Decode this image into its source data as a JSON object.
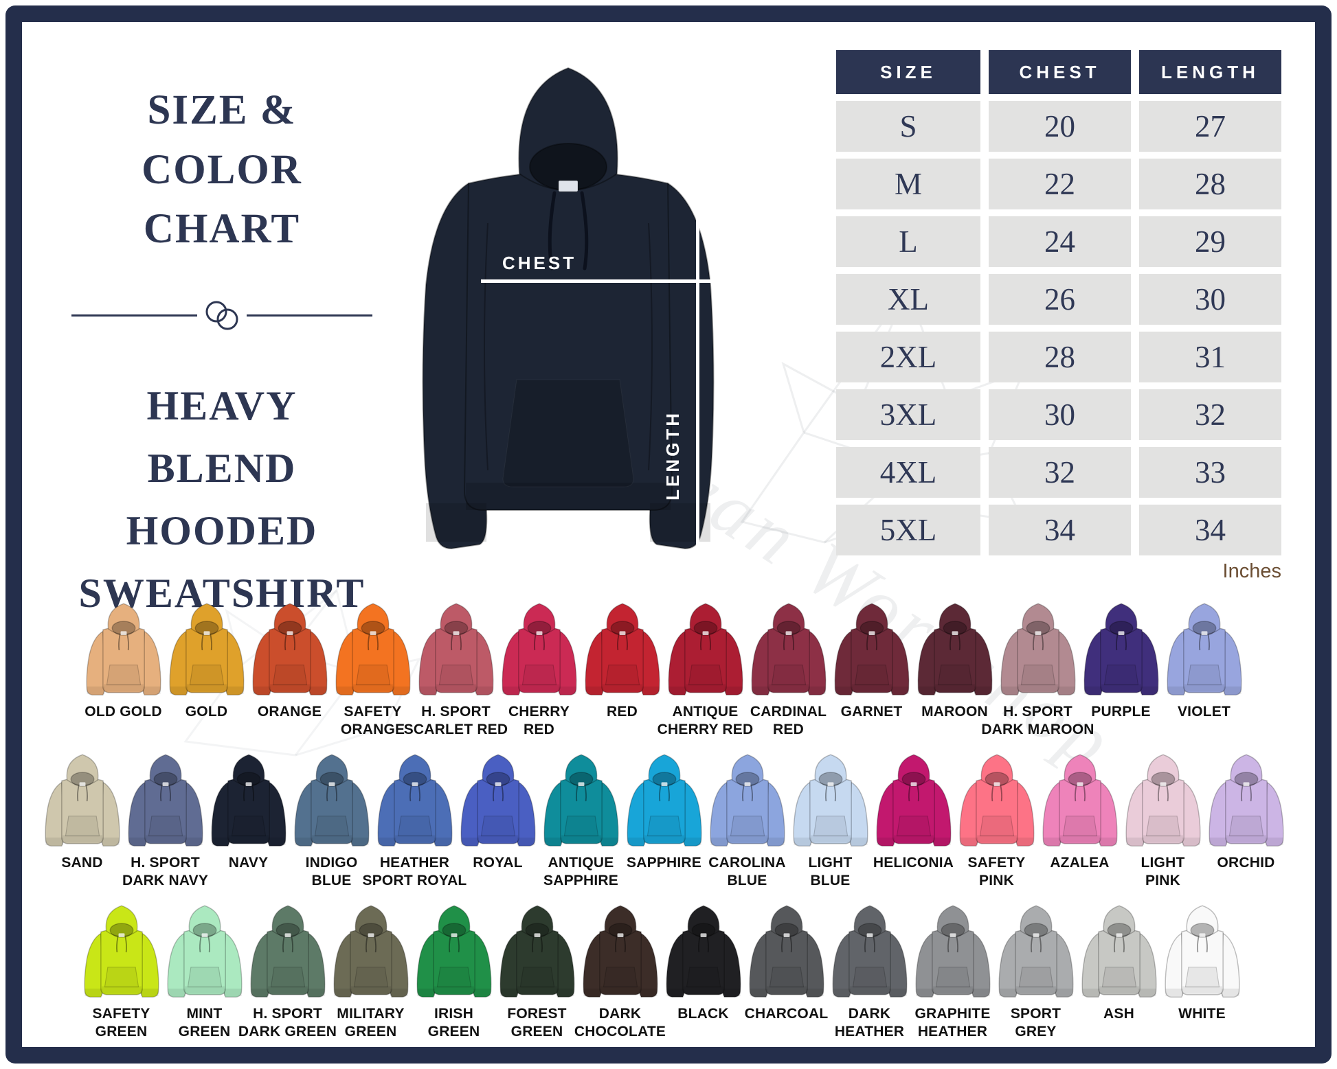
{
  "header": {
    "title": "SIZE & COLOR CHART",
    "subtitle": "HEAVY BLEND HOODED SWEATSHIRT"
  },
  "diagram": {
    "chest_label": "CHEST",
    "length_label": "LENGTH",
    "hoodie_color": "#1d2534"
  },
  "size_table": {
    "headers": [
      "SIZE",
      "CHEST",
      "LENGTH"
    ],
    "rows": [
      [
        "S",
        "20",
        "27"
      ],
      [
        "M",
        "22",
        "28"
      ],
      [
        "L",
        "24",
        "29"
      ],
      [
        "XL",
        "26",
        "30"
      ],
      [
        "2XL",
        "28",
        "31"
      ],
      [
        "3XL",
        "30",
        "32"
      ],
      [
        "4XL",
        "32",
        "33"
      ],
      [
        "5XL",
        "34",
        "34"
      ]
    ],
    "units_label": "Inches",
    "header_bg": "#2c3552",
    "cell_bg": "#e2e2e1",
    "text_color": "#2f3855"
  },
  "watermark": {
    "text": "Little Swan Workshop"
  },
  "color_rows": [
    [
      {
        "name": "OLD GOLD",
        "lines": [
          "OLD GOLD"
        ],
        "hex": "#e6b07e"
      },
      {
        "name": "GOLD",
        "lines": [
          "GOLD"
        ],
        "hex": "#dfa12b"
      },
      {
        "name": "ORANGE",
        "lines": [
          "ORANGE"
        ],
        "hex": "#cb4e2c"
      },
      {
        "name": "SAFETY ORANGE",
        "lines": [
          "SAFETY",
          "ORANGE"
        ],
        "hex": "#f37321"
      },
      {
        "name": "H. SPORT SCARLET RED",
        "lines": [
          "H. SPORT",
          "SCARLET RED"
        ],
        "hex": "#bd5a67"
      },
      {
        "name": "CHERRY RED",
        "lines": [
          "CHERRY",
          "RED"
        ],
        "hex": "#cb2a54"
      },
      {
        "name": "RED",
        "lines": [
          "RED"
        ],
        "hex": "#c32431"
      },
      {
        "name": "ANTIQUE CHERRY RED",
        "lines": [
          "ANTIQUE",
          "CHERRY RED"
        ],
        "hex": "#ac1e33"
      },
      {
        "name": "CARDINAL RED",
        "lines": [
          "CARDINAL",
          "RED"
        ],
        "hex": "#8d3046"
      },
      {
        "name": "GARNET",
        "lines": [
          "GARNET"
        ],
        "hex": "#6f2a3a"
      },
      {
        "name": "MAROON",
        "lines": [
          "MAROON"
        ],
        "hex": "#5c2936"
      },
      {
        "name": "H. SPORT DARK MAROON",
        "lines": [
          "H. SPORT",
          "DARK MAROON"
        ],
        "hex": "#b28a91"
      },
      {
        "name": "PURPLE",
        "lines": [
          "PURPLE"
        ],
        "hex": "#402f7c"
      },
      {
        "name": "VIOLET",
        "lines": [
          "VIOLET"
        ],
        "hex": "#98a5de"
      }
    ],
    [
      {
        "name": "SAND",
        "lines": [
          "SAND"
        ],
        "hex": "#cfc7ad"
      },
      {
        "name": "H. SPORT DARK NAVY",
        "lines": [
          "H. SPORT",
          "DARK NAVY"
        ],
        "hex": "#606c93"
      },
      {
        "name": "NAVY",
        "lines": [
          "NAVY"
        ],
        "hex": "#1c2333"
      },
      {
        "name": "INDIGO BLUE",
        "lines": [
          "INDIGO",
          "BLUE"
        ],
        "hex": "#53718f"
      },
      {
        "name": "HEATHER SPORT ROYAL",
        "lines": [
          "HEATHER",
          "SPORT ROYAL"
        ],
        "hex": "#4c6eb6"
      },
      {
        "name": "ROYAL",
        "lines": [
          "ROYAL"
        ],
        "hex": "#4a5fc2"
      },
      {
        "name": "ANTIQUE SAPPHIRE",
        "lines": [
          "ANTIQUE",
          "SAPPHIRE"
        ],
        "hex": "#0f8d9b"
      },
      {
        "name": "SAPPHIRE",
        "lines": [
          "SAPPHIRE"
        ],
        "hex": "#18a5d8"
      },
      {
        "name": "CAROLINA BLUE",
        "lines": [
          "CAROLINA",
          "BLUE"
        ],
        "hex": "#8ca5de"
      },
      {
        "name": "LIGHT BLUE",
        "lines": [
          "LIGHT",
          "BLUE"
        ],
        "hex": "#c6d9f0"
      },
      {
        "name": "HELICONIA",
        "lines": [
          "HELICONIA"
        ],
        "hex": "#c2186e"
      },
      {
        "name": "SAFETY PINK",
        "lines": [
          "SAFETY",
          "PINK"
        ],
        "hex": "#fd7386"
      },
      {
        "name": "AZALEA",
        "lines": [
          "AZALEA"
        ],
        "hex": "#ee83ba"
      },
      {
        "name": "LIGHT PINK",
        "lines": [
          "LIGHT",
          "PINK"
        ],
        "hex": "#eaccd9"
      },
      {
        "name": "ORCHID",
        "lines": [
          "ORCHID"
        ],
        "hex": "#ccb5e5"
      }
    ],
    [
      {
        "name": "SAFETY GREEN",
        "lines": [
          "SAFETY",
          "GREEN"
        ],
        "hex": "#c9e617"
      },
      {
        "name": "MINT GREEN",
        "lines": [
          "MINT",
          "GREEN"
        ],
        "hex": "#abe9c0"
      },
      {
        "name": "H. SPORT DARK GREEN",
        "lines": [
          "H. SPORT",
          "DARK GREEN"
        ],
        "hex": "#5d7a67"
      },
      {
        "name": "MILITARY GREEN",
        "lines": [
          "MILITARY",
          "GREEN"
        ],
        "hex": "#6c6b55"
      },
      {
        "name": "IRISH GREEN",
        "lines": [
          "IRISH",
          "GREEN"
        ],
        "hex": "#209048"
      },
      {
        "name": "FOREST GREEN",
        "lines": [
          "FOREST",
          "GREEN"
        ],
        "hex": "#2d3b2e"
      },
      {
        "name": "DARK CHOCOLATE",
        "lines": [
          "DARK",
          "CHOCOLATE"
        ],
        "hex": "#3c2d28"
      },
      {
        "name": "BLACK",
        "lines": [
          "BLACK"
        ],
        "hex": "#202023"
      },
      {
        "name": "CHARCOAL",
        "lines": [
          "CHARCOAL"
        ],
        "hex": "#56585b"
      },
      {
        "name": "DARK HEATHER",
        "lines": [
          "DARK",
          "HEATHER"
        ],
        "hex": "#616469"
      },
      {
        "name": "GRAPHITE HEATHER",
        "lines": [
          "GRAPHITE",
          "HEATHER"
        ],
        "hex": "#8f9194"
      },
      {
        "name": "SPORT GREY",
        "lines": [
          "SPORT",
          "GREY"
        ],
        "hex": "#aaacae"
      },
      {
        "name": "ASH",
        "lines": [
          "ASH"
        ],
        "hex": "#c7c8c4"
      },
      {
        "name": "WHITE",
        "lines": [
          "WHITE"
        ],
        "hex": "#f9f9f9"
      }
    ]
  ]
}
